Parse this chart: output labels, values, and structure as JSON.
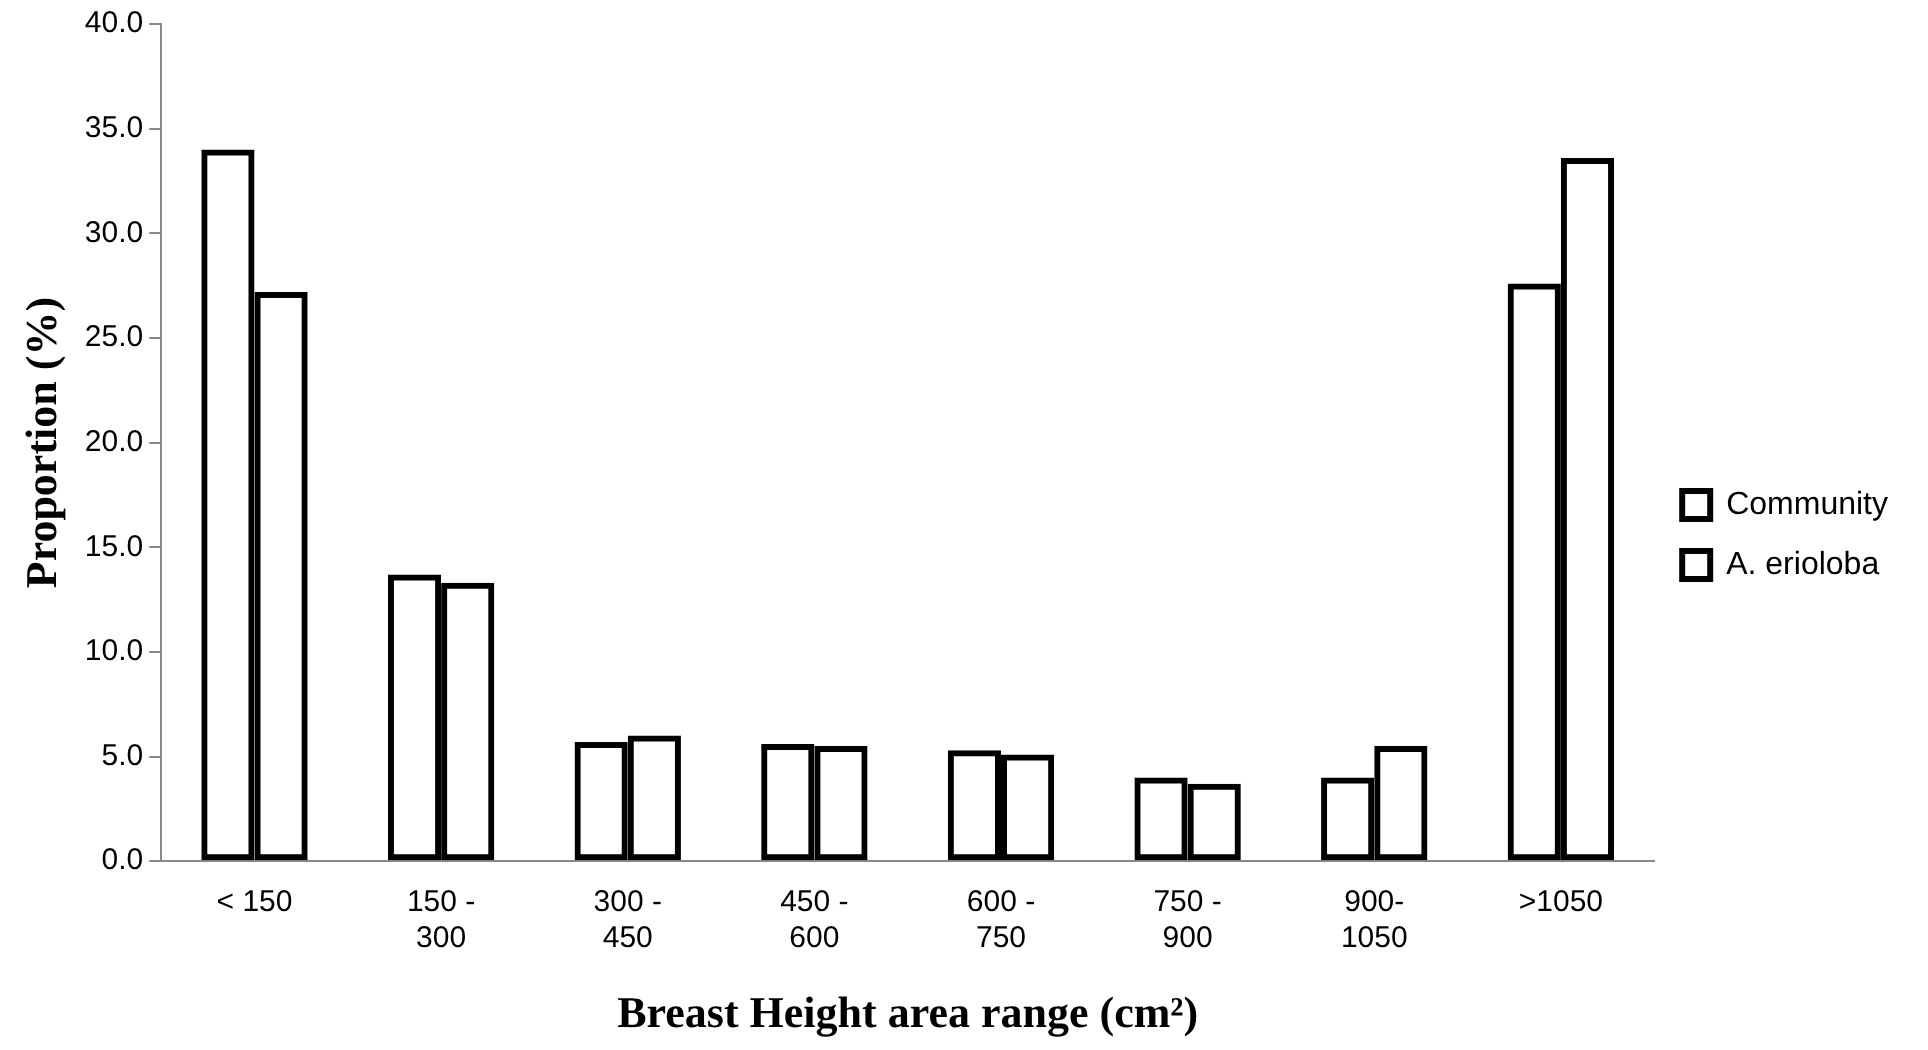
{
  "chart_data": {
    "type": "bar",
    "xlabel": "Breast Height area range (cm²)",
    "ylabel": "Proportion (%)",
    "categories": [
      "< 150",
      "150 - 300",
      "300 - 450",
      "450 - 600",
      "600 - 750",
      "750 - 900",
      "900-1050",
      ">1050"
    ],
    "series": [
      {
        "name": "Community",
        "color": "#000000",
        "values": [
          34.0,
          13.7,
          5.7,
          5.6,
          5.3,
          4.0,
          4.0,
          27.6
        ]
      },
      {
        "name": "A. erioloba",
        "color": "#000000",
        "values": [
          27.2,
          13.3,
          6.0,
          5.5,
          5.1,
          3.7,
          5.5,
          33.6
        ]
      }
    ],
    "ylim": [
      0,
      40
    ],
    "yticks": [
      {
        "value": 0,
        "label": "0.0"
      },
      {
        "value": 5,
        "label": "5.0"
      },
      {
        "value": 10,
        "label": "10.0"
      },
      {
        "value": 15,
        "label": "15.0"
      },
      {
        "value": 20,
        "label": "20.0"
      },
      {
        "value": 25,
        "label": "25.0"
      },
      {
        "value": 30,
        "label": "30.0"
      },
      {
        "value": 35,
        "label": "35.0"
      },
      {
        "value": 40,
        "label": "40.0"
      }
    ],
    "grid": false,
    "legend": "right"
  }
}
